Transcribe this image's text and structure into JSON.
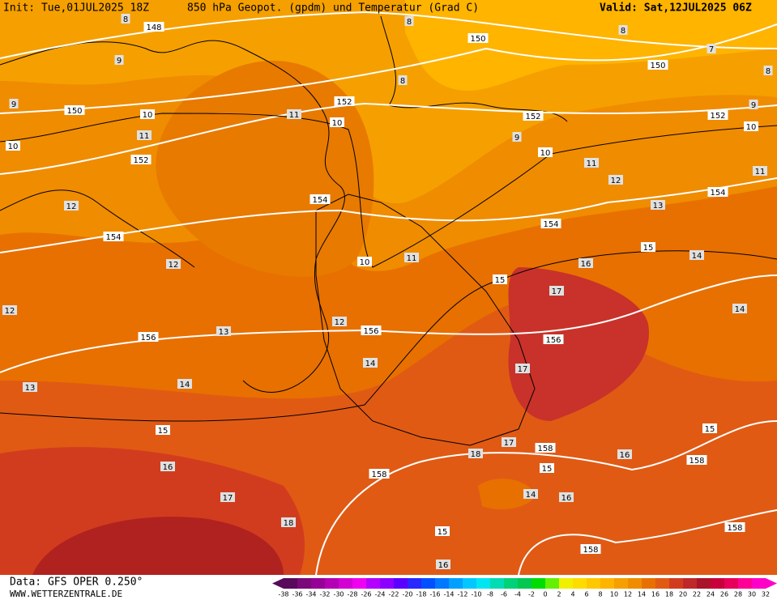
{
  "header": {
    "init": "Init: Tue,01JUL2025 18Z",
    "title": "850 hPa Geopot. (gpdm) und Temperatur (Grad C)",
    "valid": "Valid: Sat,12JUL2025 06Z"
  },
  "footer": {
    "data_source": "Data: GFS OPER 0.250°",
    "website": "WWW.WETTERZENTRALE.DE"
  },
  "geopotential_labels": [
    148,
    150,
    150,
    150,
    152,
    152,
    152,
    152,
    154,
    154,
    154,
    154,
    156,
    156,
    156,
    158,
    158,
    158,
    158,
    158
  ],
  "isotherm_labels": [
    10,
    10,
    10,
    10,
    10,
    10,
    15,
    15,
    15,
    15,
    15,
    15
  ],
  "temperature_labels": [
    8,
    8,
    8,
    8,
    8,
    9,
    9,
    9,
    9,
    7,
    11,
    11,
    11,
    11,
    11,
    12,
    12,
    12,
    12,
    12,
    13,
    13,
    13,
    14,
    14,
    14,
    14,
    14,
    16,
    16,
    16,
    16,
    16,
    17,
    17,
    17,
    17,
    18,
    18
  ],
  "colorbar": {
    "labels": [
      -38,
      -36,
      -34,
      -32,
      -30,
      -28,
      -26,
      -24,
      -22,
      -20,
      -18,
      -16,
      -14,
      -12,
      -10,
      -8,
      -6,
      -4,
      -2,
      0,
      2,
      4,
      6,
      8,
      10,
      12,
      14,
      16,
      18,
      20,
      22,
      24,
      26,
      28,
      30,
      32
    ],
    "colors": [
      "#5a0a5a",
      "#7a0a7a",
      "#960096",
      "#b400b4",
      "#d200d2",
      "#f000f0",
      "#b400ff",
      "#8c00ff",
      "#5a00ff",
      "#2828ff",
      "#0050ff",
      "#0078ff",
      "#00a0ff",
      "#00c8ff",
      "#00e6f0",
      "#00dcb4",
      "#00d278",
      "#00c850",
      "#00dc00",
      "#64f000",
      "#f0f000",
      "#ffdc00",
      "#ffc800",
      "#ffb400",
      "#f5a000",
      "#f08c00",
      "#e87000",
      "#e05a14",
      "#d23c1e",
      "#be2828",
      "#aa1428",
      "#c8003c",
      "#e6005a",
      "#ff0096",
      "#ff00c8"
    ]
  }
}
